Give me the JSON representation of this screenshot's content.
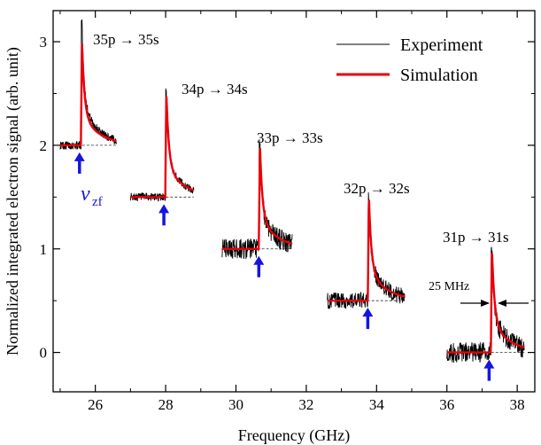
{
  "chart_data": {
    "type": "line",
    "xlabel": "Frequency (GHz)",
    "ylabel": "Normalized integrated electron signal (arb. unit)",
    "xlim": [
      24.8,
      38.5
    ],
    "ylim": [
      -0.38,
      3.3
    ],
    "x_ticks": [
      26,
      28,
      30,
      32,
      34,
      36,
      38
    ],
    "y_ticks": [
      0,
      1,
      2,
      3
    ],
    "grid": false,
    "legend": {
      "position": "top-right",
      "entries": [
        {
          "name": "Experiment",
          "color": "#000000"
        },
        {
          "name": "Simulation",
          "color": "#e8000b"
        }
      ]
    },
    "series": [
      {
        "name": "Experiment",
        "color": "#000000"
      },
      {
        "name": "Simulation",
        "color": "#e8000b"
      }
    ],
    "transitions": [
      {
        "label": "35p → 35s",
        "baseline": 2.0,
        "x_start": 25.0,
        "x_end": 26.6,
        "peak_x": 25.62,
        "peak_sim": 3.0,
        "peak_exp": 3.2,
        "noise": 0.04,
        "zero_field_x": 25.55
      },
      {
        "label": "34p → 34s",
        "baseline": 1.5,
        "x_start": 27.0,
        "x_end": 28.8,
        "peak_x": 28.02,
        "peak_sim": 2.52,
        "peak_exp": 2.52,
        "noise": 0.04,
        "zero_field_x": 27.95
      },
      {
        "label": "33p → 33s",
        "baseline": 1.0,
        "x_start": 29.6,
        "x_end": 31.6,
        "peak_x": 30.68,
        "peak_sim": 2.02,
        "peak_exp": 2.0,
        "noise": 0.1,
        "zero_field_x": 30.65
      },
      {
        "label": "32p → 32s",
        "baseline": 0.5,
        "x_start": 32.6,
        "x_end": 34.8,
        "peak_x": 33.78,
        "peak_sim": 1.52,
        "peak_exp": 1.5,
        "noise": 0.08,
        "zero_field_x": 33.75
      },
      {
        "label": "31p → 31s",
        "baseline": 0.0,
        "x_start": 36.0,
        "x_end": 38.2,
        "peak_x": 37.28,
        "peak_sim": 1.02,
        "peak_exp": 1.0,
        "noise": 0.1,
        "zero_field_x": 37.2
      }
    ],
    "annotations": {
      "zero_field_symbol": "ν",
      "zero_field_subscript": "zf",
      "width_label": "25 MHz",
      "arrow_color": "#1515e0"
    }
  }
}
